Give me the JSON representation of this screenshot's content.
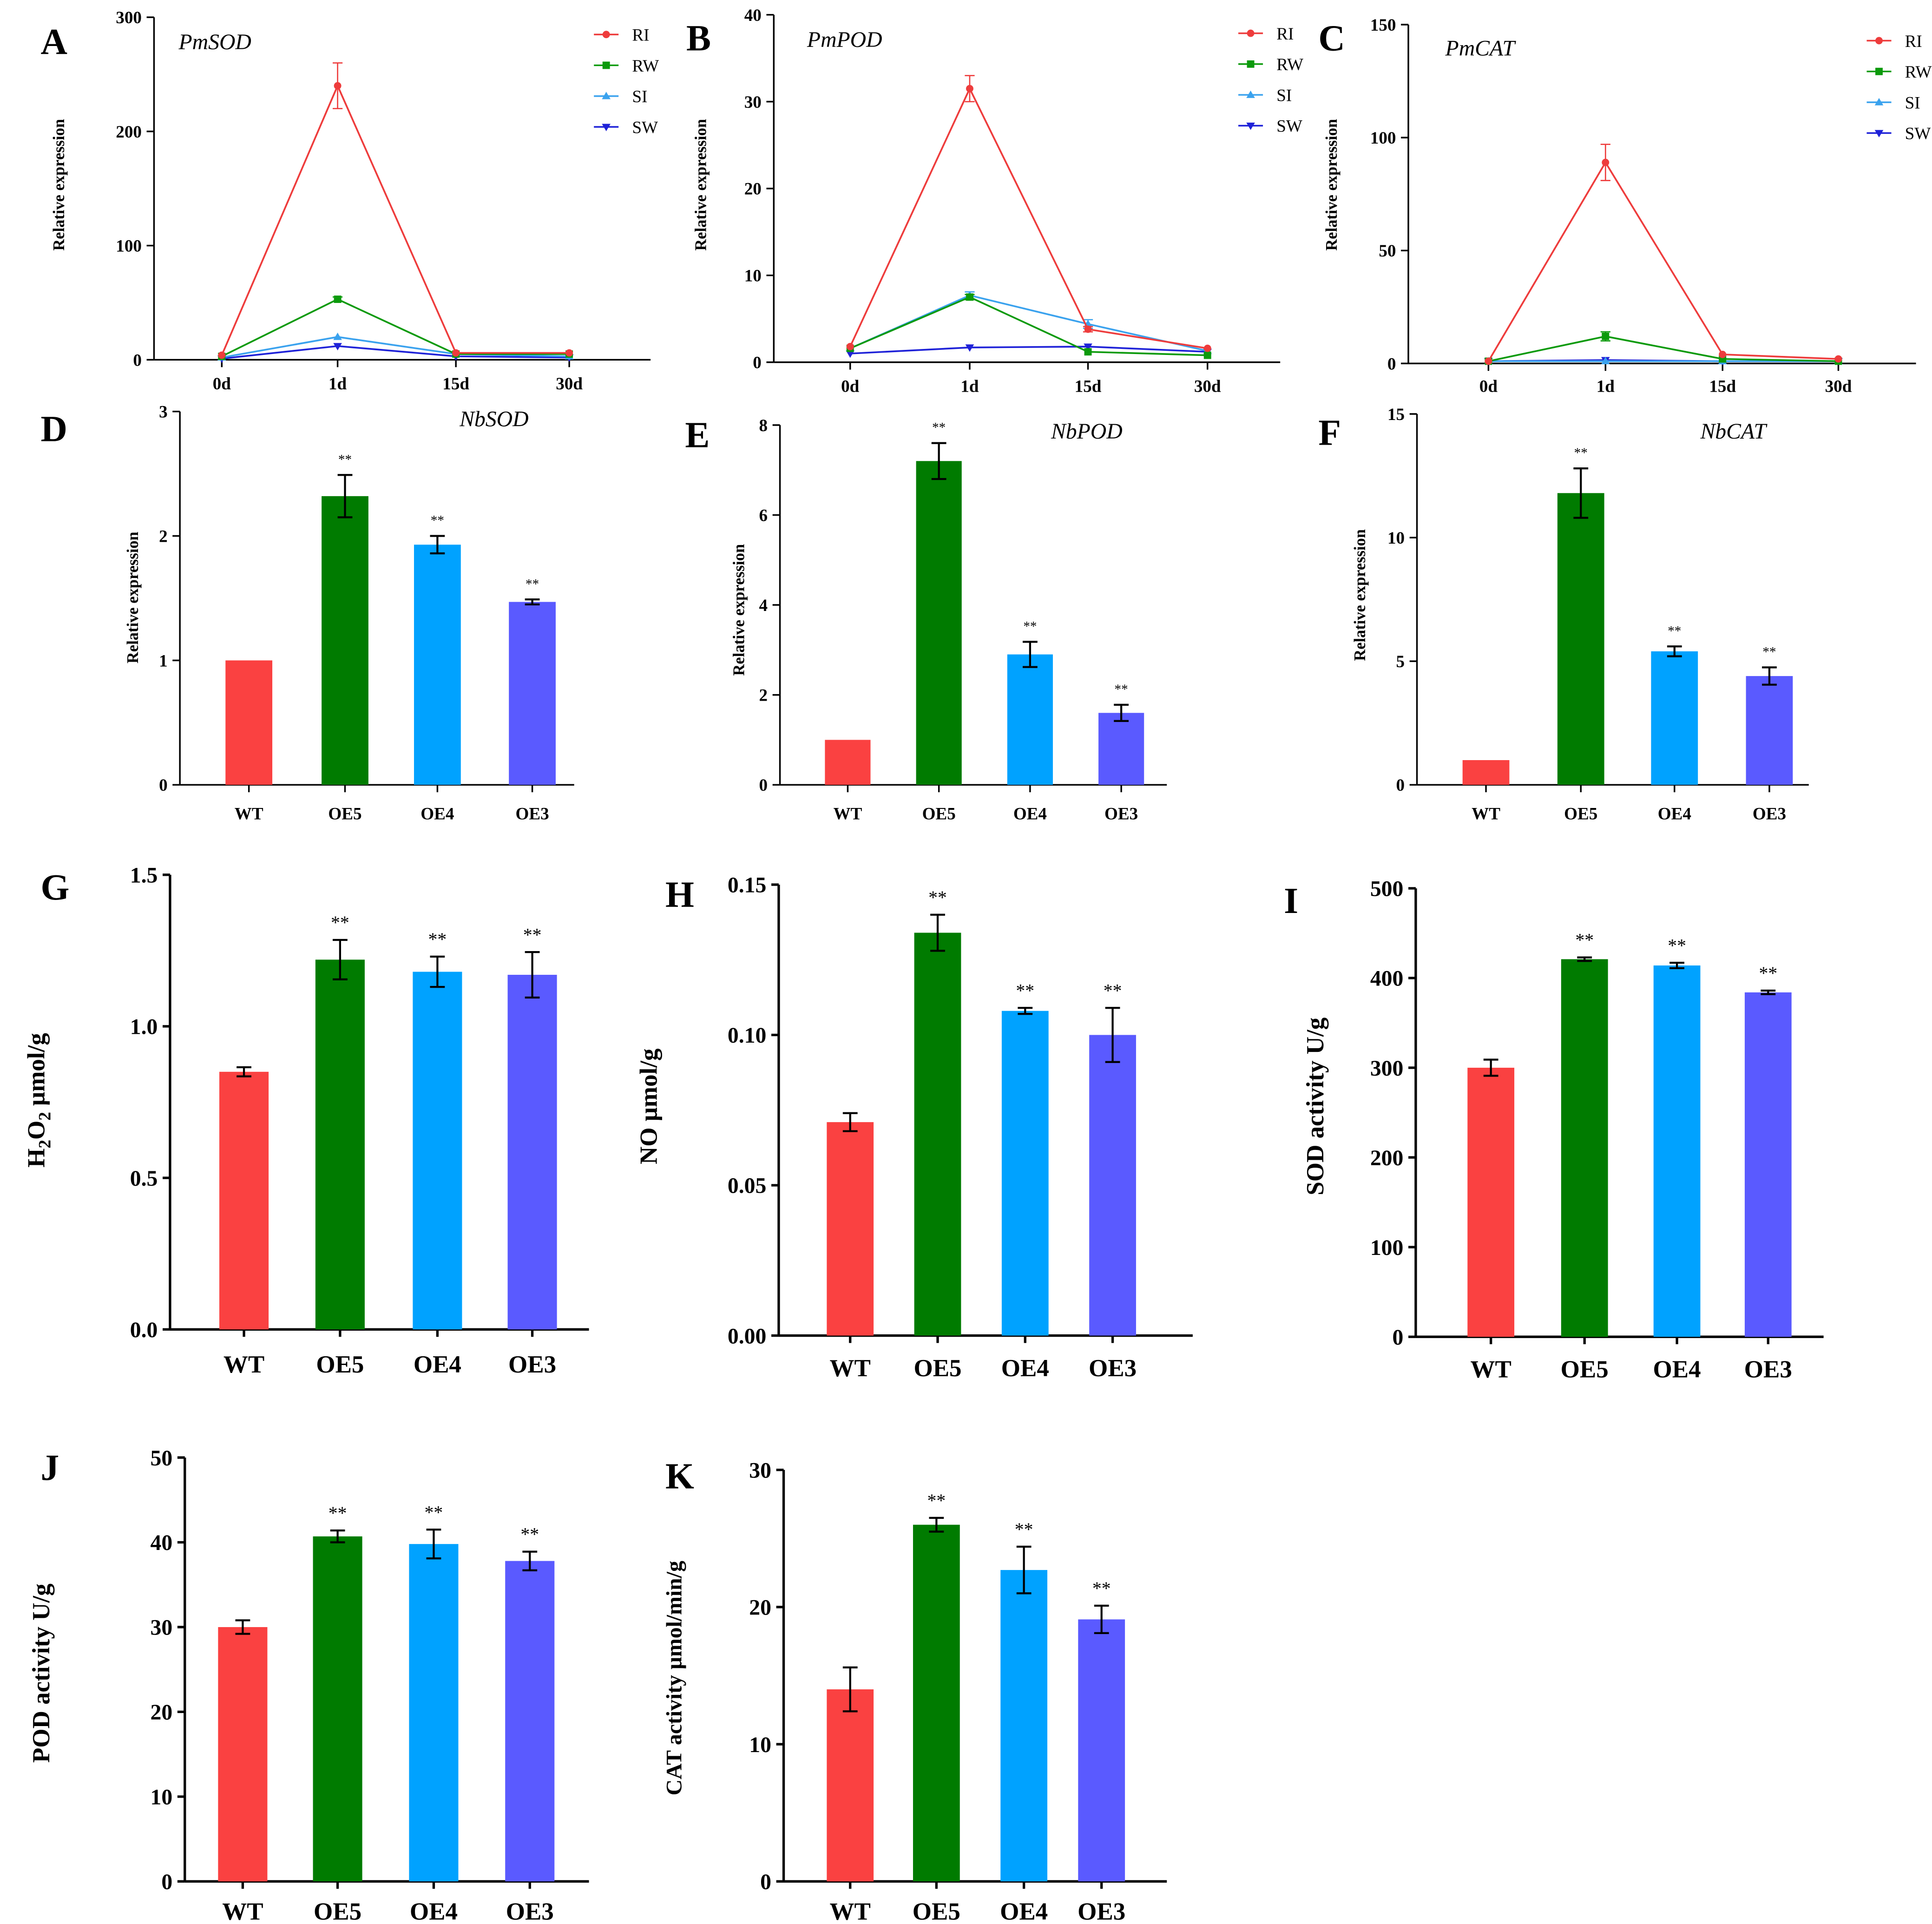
{
  "chart_data": [
    {
      "panel": "A",
      "type": "line",
      "title": "PmSOD",
      "ylabel": "Relative expression",
      "categories": [
        "0d",
        "1d",
        "15d",
        "30d"
      ],
      "ylim": [
        0,
        300
      ],
      "yticks": [
        0,
        100,
        200,
        300
      ],
      "series": [
        {
          "name": "RI",
          "values": [
            4,
            240,
            6,
            6
          ],
          "errors": [
            0,
            20,
            0,
            0
          ]
        },
        {
          "name": "RW",
          "values": [
            3,
            53,
            5,
            5
          ],
          "errors": [
            0,
            2,
            0,
            0
          ]
        },
        {
          "name": "SI",
          "values": [
            2,
            20,
            5,
            3
          ],
          "errors": [
            0,
            0,
            0,
            0
          ]
        },
        {
          "name": "SW",
          "values": [
            1,
            12,
            3,
            2
          ],
          "errors": [
            0,
            0,
            0,
            0
          ]
        }
      ]
    },
    {
      "panel": "B",
      "type": "line",
      "title": "PmPOD",
      "ylabel": "Relative expression",
      "categories": [
        "0d",
        "1d",
        "15d",
        "30d"
      ],
      "ylim": [
        0,
        40
      ],
      "yticks": [
        0,
        10,
        20,
        30,
        40
      ],
      "series": [
        {
          "name": "RI",
          "values": [
            1.8,
            31.5,
            3.8,
            1.6
          ],
          "errors": [
            0,
            1.5,
            0.3,
            0
          ]
        },
        {
          "name": "RW",
          "values": [
            1.6,
            7.5,
            1.2,
            0.8
          ],
          "errors": [
            0,
            0.3,
            0,
            0
          ]
        },
        {
          "name": "SI",
          "values": [
            1.6,
            7.7,
            4.4,
            1.3
          ],
          "errors": [
            0,
            0.4,
            0.5,
            0
          ]
        },
        {
          "name": "SW",
          "values": [
            1.0,
            1.7,
            1.8,
            1.2
          ],
          "errors": [
            0,
            0,
            0,
            0
          ]
        }
      ]
    },
    {
      "panel": "C",
      "type": "line",
      "title": "PmCAT",
      "ylabel": "Relative expression",
      "categories": [
        "0d",
        "1d",
        "15d",
        "30d"
      ],
      "ylim": [
        0,
        150
      ],
      "yticks": [
        0,
        50,
        100,
        150
      ],
      "series": [
        {
          "name": "RI",
          "values": [
            1,
            89,
            4,
            2
          ],
          "errors": [
            0,
            8,
            0,
            0
          ]
        },
        {
          "name": "RW",
          "values": [
            1,
            12,
            2,
            1
          ],
          "errors": [
            0,
            2,
            0,
            0
          ]
        },
        {
          "name": "SI",
          "values": [
            1,
            1,
            1,
            1
          ],
          "errors": [
            0,
            0,
            0,
            0
          ]
        },
        {
          "name": "SW",
          "values": [
            1,
            1.5,
            1,
            1
          ],
          "errors": [
            0,
            0,
            0,
            0
          ]
        }
      ]
    },
    {
      "panel": "D",
      "type": "bar",
      "title": "NbSOD",
      "ylabel": "Relative expression",
      "categories": [
        "WT",
        "OE5",
        "OE4",
        "OE3"
      ],
      "ylim": [
        0,
        3
      ],
      "yticks": [
        "0",
        "1",
        "2",
        "3"
      ],
      "values": [
        1.0,
        2.32,
        1.93,
        1.47
      ],
      "errors": [
        0,
        0.17,
        0.07,
        0.02
      ],
      "significance": [
        "",
        "**",
        "**",
        "**"
      ]
    },
    {
      "panel": "E",
      "type": "bar",
      "title": "NbPOD",
      "ylabel": "Relative expression",
      "categories": [
        "WT",
        "OE5",
        "OE4",
        "OE3"
      ],
      "ylim": [
        0,
        8
      ],
      "yticks": [
        "0",
        "2",
        "4",
        "6",
        "8"
      ],
      "values": [
        1.0,
        7.2,
        2.9,
        1.6
      ],
      "errors": [
        0,
        0.4,
        0.28,
        0.18
      ],
      "significance": [
        "",
        "**",
        "**",
        "**"
      ]
    },
    {
      "panel": "F",
      "type": "bar",
      "title": "NbCAT",
      "ylabel": "Relative expression",
      "categories": [
        "WT",
        "OE5",
        "OE4",
        "OE3"
      ],
      "ylim": [
        0,
        15
      ],
      "yticks": [
        "0",
        "5",
        "10",
        "15"
      ],
      "values": [
        1.0,
        11.8,
        5.4,
        4.4
      ],
      "errors": [
        0,
        1.0,
        0.2,
        0.35
      ],
      "significance": [
        "",
        "**",
        "**",
        "**"
      ]
    },
    {
      "panel": "G",
      "type": "bar",
      "title": "",
      "ylabel": "H2O2 μmol/g",
      "categories": [
        "WT",
        "OE5",
        "OE4",
        "OE3"
      ],
      "ylim": [
        0,
        1.5
      ],
      "yticks": [
        "0.0",
        "0.5",
        "1.0",
        "1.5"
      ],
      "values": [
        0.85,
        1.22,
        1.18,
        1.17
      ],
      "errors": [
        0.015,
        0.065,
        0.05,
        0.075
      ],
      "significance": [
        "",
        "**",
        "**",
        "**"
      ]
    },
    {
      "panel": "H",
      "type": "bar",
      "title": "",
      "ylabel": "NO μmol/g",
      "categories": [
        "WT",
        "OE5",
        "OE4",
        "OE3"
      ],
      "ylim": [
        0,
        0.15
      ],
      "yticks": [
        "0.00",
        "0.05",
        "0.10",
        "0.15"
      ],
      "values": [
        0.071,
        0.134,
        0.108,
        0.1
      ],
      "errors": [
        0.003,
        0.006,
        0.001,
        0.009
      ],
      "significance": [
        "",
        "**",
        "**",
        "**"
      ]
    },
    {
      "panel": "I",
      "type": "bar",
      "title": "",
      "ylabel": "SOD activity U/g",
      "categories": [
        "WT",
        "OE5",
        "OE4",
        "OE3"
      ],
      "ylim": [
        0,
        500
      ],
      "yticks": [
        "0",
        "100",
        "200",
        "300",
        "400",
        "500"
      ],
      "values": [
        300,
        421,
        414,
        384
      ],
      "errors": [
        9,
        2,
        3,
        2
      ],
      "significance": [
        "",
        "**",
        "**",
        "**"
      ]
    },
    {
      "panel": "J",
      "type": "bar",
      "title": "",
      "ylabel": "POD activity U/g",
      "categories": [
        "WT",
        "OE5",
        "OE4",
        "OE3"
      ],
      "ylim": [
        0,
        50
      ],
      "yticks": [
        "0",
        "10",
        "20",
        "30",
        "40",
        "50"
      ],
      "values": [
        30,
        40.7,
        39.8,
        37.8
      ],
      "errors": [
        0.8,
        0.7,
        1.7,
        1.1
      ],
      "significance": [
        "",
        "**",
        "**",
        "**"
      ]
    },
    {
      "panel": "K",
      "type": "bar",
      "title": "",
      "ylabel": "CAT activity μmol/min/g",
      "categories": [
        "WT",
        "OE5",
        "OE4",
        "OE3"
      ],
      "ylim": [
        0,
        30
      ],
      "yticks": [
        "0",
        "10",
        "20",
        "30"
      ],
      "values": [
        14,
        26,
        22.7,
        19.1
      ],
      "errors": [
        1.6,
        0.5,
        1.7,
        1.0
      ],
      "significance": [
        "",
        "**",
        "**",
        "**"
      ]
    }
  ],
  "colors": {
    "RI": "#ee3c3c",
    "RW": "#0c9a0c",
    "SI": "#3aa2ee",
    "SW": "#1f22d8",
    "WT": "#fa4141",
    "OE5": "#007b00",
    "OE4": "#00a2ff",
    "OE3": "#5a5aff"
  }
}
